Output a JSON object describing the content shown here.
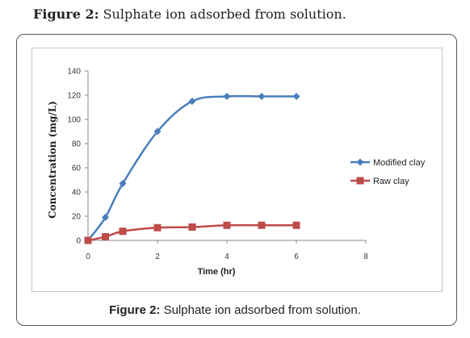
{
  "page": {
    "title_prefix": "Figure 2:",
    "title_text": " Sulphate ion adsorbed from solution.",
    "caption_prefix": "Figure 2:",
    "caption_text": " Sulphate ion adsorbed from solution."
  },
  "chart_data": {
    "type": "line",
    "xlabel": "Time (hr)",
    "ylabel": "Concentration (mg/L)",
    "xlim": [
      0,
      8
    ],
    "ylim": [
      0,
      140
    ],
    "xticks": [
      0,
      2,
      4,
      6,
      8
    ],
    "yticks": [
      0,
      20,
      40,
      60,
      80,
      100,
      120,
      140
    ],
    "grid": false,
    "legend_position": "right",
    "series": [
      {
        "name": "Modified clay",
        "color": "#4a7ebb",
        "marker": "diamond",
        "smooth": true,
        "x": [
          0,
          0.5,
          1,
          2,
          3,
          4,
          5,
          6
        ],
        "y": [
          0,
          19,
          47,
          90,
          115,
          119,
          119,
          119
        ]
      },
      {
        "name": "Raw clay",
        "color": "#be4b48",
        "marker": "square",
        "smooth": true,
        "x": [
          0,
          0.5,
          1,
          2,
          3,
          4,
          5,
          6
        ],
        "y": [
          0,
          3,
          7.5,
          10.5,
          11,
          12.5,
          12.5,
          12.5
        ]
      }
    ]
  }
}
